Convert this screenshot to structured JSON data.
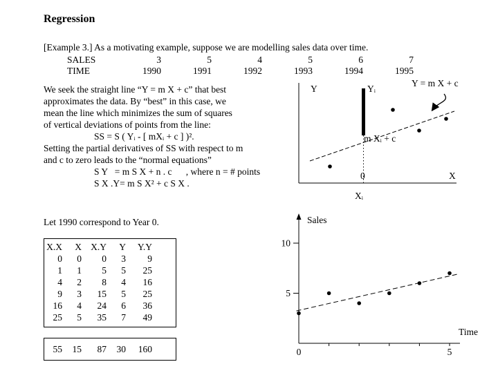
{
  "slide": {
    "title": "Regression",
    "intro": "[Example 3.] As a motivating example, suppose we are modelling sales data over time."
  },
  "data_rows": {
    "sales": {
      "label": "SALES",
      "values": [
        "3",
        "5",
        "4",
        "5",
        "6",
        "7"
      ]
    },
    "time": {
      "label": "TIME",
      "values": [
        "1990",
        "1991",
        "1992",
        "1993",
        "1994",
        "1995"
      ]
    }
  },
  "body": {
    "lines": [
      "We seek the straight line “Y = m X + c” that best",
      "approximates the data. By “best” in this case, we",
      "mean the line which minimizes the sum of squares",
      "of vertical deviations of points from the line:",
      "\tSS = S ( Yᵢ - [ mXᵢ + c ] )².",
      "Setting the partial derivatives of SS with respect to m",
      "and c to zero leads to the “normal equations”",
      "\tS Y   = m S X + n . c      , where n = # points",
      "\tS X .Y= m S X² + c S X ."
    ]
  },
  "note": "Let 1990 correspond to Year 0.",
  "table": {
    "headers": [
      "X.X",
      "X",
      "X.Y",
      "Y",
      "Y.Y"
    ],
    "rows": [
      [
        "0",
        "0",
        "0",
        "3",
        "9"
      ],
      [
        "1",
        "1",
        "5",
        "5",
        "25"
      ],
      [
        "4",
        "2",
        "8",
        "4",
        "16"
      ],
      [
        "9",
        "3",
        "15",
        "5",
        "25"
      ],
      [
        "16",
        "4",
        "24",
        "6",
        "36"
      ],
      [
        "25",
        "5",
        "35",
        "7",
        "49"
      ]
    ],
    "totals": [
      "55",
      "15",
      "87",
      "30",
      "160"
    ]
  },
  "chart_data": [
    {
      "type": "scatter",
      "name": "least-squares-deviation-diagram",
      "description": "Schematic of the vertical deviation of a data point Yᵢ from the fitted line Y = m X + c at Xᵢ",
      "labels": {
        "y_axis": "Y",
        "x_axis": "X",
        "origin": "0",
        "point": "Yᵢ",
        "point_x": "Xᵢ",
        "line": "Y = m X + c",
        "line_at_xi": "m Xᵢ + c"
      }
    },
    {
      "type": "scatter",
      "name": "sales-vs-time",
      "title": "",
      "xlabel": "Time",
      "ylabel": "Sales",
      "x": [
        0,
        1,
        2,
        3,
        4,
        5
      ],
      "y": [
        3,
        5,
        4,
        5,
        6,
        7
      ],
      "x_ticks": [
        0,
        5
      ],
      "y_ticks": [
        5,
        10
      ],
      "xlim": [
        0,
        5.3
      ],
      "ylim": [
        0,
        12.6
      ],
      "grid": false,
      "legend": false,
      "trend_line": {
        "m": 0.686,
        "c": 3.29,
        "style": "dashed"
      }
    }
  ]
}
